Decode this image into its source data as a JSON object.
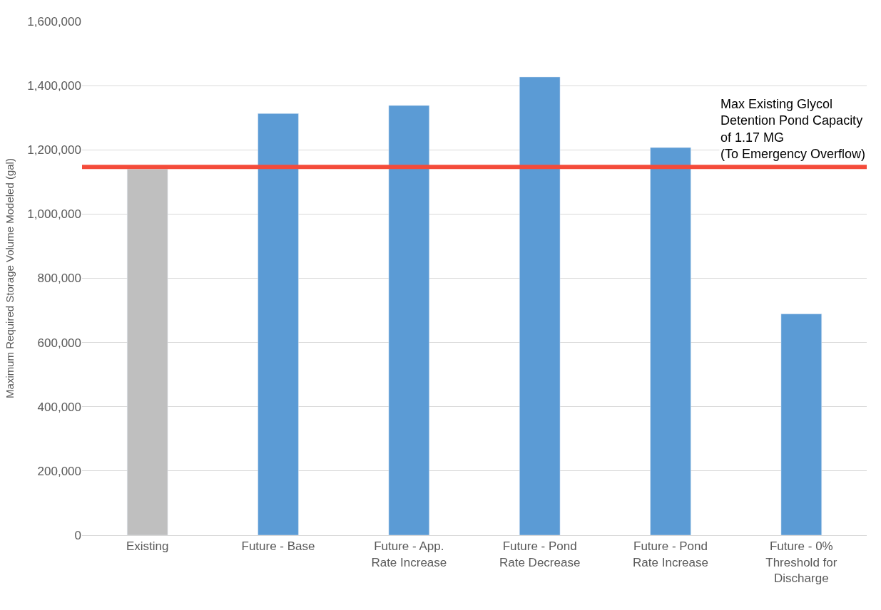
{
  "chart_data": {
    "type": "bar",
    "ylabel": "Maximum Required Storage Volume Modeled (gal)",
    "categories": [
      "Existing",
      "Future - Base",
      "Future - App.\nRate Increase",
      "Future - Pond\nRate Decrease",
      "Future - Pond\nRate Increase",
      "Future - 0%\nThreshold for\nDischarge"
    ],
    "values": [
      1140000,
      1313000,
      1338000,
      1427000,
      1207000,
      689000
    ],
    "colors": [
      "#bfbfbf",
      "#5b9bd5",
      "#5b9bd5",
      "#5b9bd5",
      "#5b9bd5",
      "#5b9bd5"
    ],
    "ylim": [
      0,
      1600000
    ],
    "yticks": [
      {
        "value": 0,
        "label": "0"
      },
      {
        "value": 200000,
        "label": "200,000"
      },
      {
        "value": 400000,
        "label": "400,000"
      },
      {
        "value": 600000,
        "label": "600,000"
      },
      {
        "value": 800000,
        "label": "800,000"
      },
      {
        "value": 1000000,
        "label": "1,000,000"
      },
      {
        "value": 1200000,
        "label": "1,200,000"
      },
      {
        "value": 1400000,
        "label": "1,400,000"
      },
      {
        "value": 1600000,
        "label": "1,600,000"
      }
    ],
    "grid": "y",
    "legend": false,
    "ref_lines": [
      {
        "axis": "y",
        "value": 1147000,
        "label": "Max Existing Glycol\nDetention Pond Capacity\nof 1.17 MG\n(To Emergency Overflow)",
        "color": "#f44b3a"
      }
    ]
  }
}
